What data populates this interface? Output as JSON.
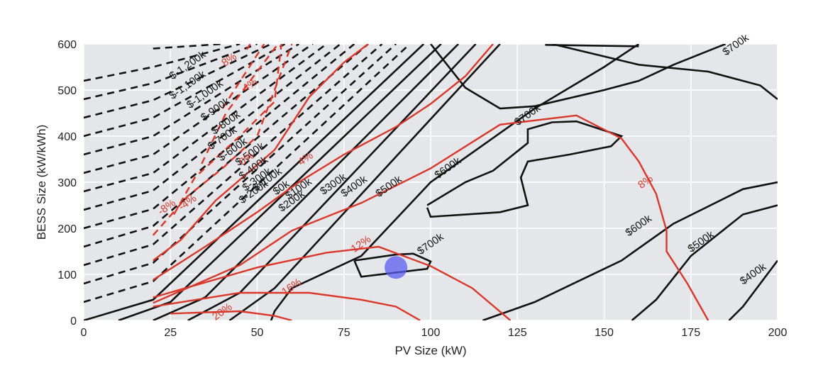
{
  "chart_data": {
    "type": "contour",
    "xlabel": "PV Size (kW)",
    "ylabel": "BESS Size (kW/kWh)",
    "xlim": [
      0,
      200
    ],
    "ylim": [
      0,
      600
    ],
    "xticks": [
      0,
      25,
      50,
      75,
      100,
      125,
      150,
      175,
      200
    ],
    "yticks": [
      0,
      100,
      200,
      300,
      400,
      500,
      600
    ],
    "grid": true,
    "colors": {
      "plot_bg": "#e5e6e9",
      "grid": "#ffffff",
      "npv": "#111111",
      "irr": "#d9372a",
      "marker": "#5a5cf0"
    },
    "npv_lines_negative": [
      {
        "label": "$-1,200k",
        "pts": [
          [
            20,
            590
          ],
          [
            40,
            600
          ]
        ]
      },
      {
        "label": "$-1,100k",
        "pts": [
          [
            0,
            520
          ],
          [
            20,
            550
          ],
          [
            45,
            600
          ]
        ]
      },
      {
        "label": "$-1,000k",
        "pts": [
          [
            0,
            480
          ],
          [
            20,
            515
          ],
          [
            50,
            600
          ]
        ]
      },
      {
        "label": "$-900k",
        "pts": [
          [
            0,
            440
          ],
          [
            20,
            478
          ],
          [
            54,
            600
          ]
        ]
      },
      {
        "label": "$-800k",
        "pts": [
          [
            0,
            400
          ],
          [
            20,
            440
          ],
          [
            58,
            600
          ]
        ]
      },
      {
        "label": "$-700k",
        "pts": [
          [
            0,
            360
          ],
          [
            20,
            400
          ],
          [
            62,
            600
          ]
        ]
      },
      {
        "label": "$-600k",
        "pts": [
          [
            0,
            320
          ],
          [
            20,
            360
          ],
          [
            66,
            600
          ]
        ]
      },
      {
        "label": "$-500k",
        "pts": [
          [
            0,
            280
          ],
          [
            20,
            320
          ],
          [
            70,
            600
          ]
        ]
      },
      {
        "label": "$-400k",
        "pts": [
          [
            0,
            240
          ],
          [
            20,
            282
          ],
          [
            74,
            600
          ]
        ]
      },
      {
        "label": "$-300k",
        "pts": [
          [
            0,
            200
          ],
          [
            20,
            242
          ],
          [
            78,
            600
          ]
        ]
      },
      {
        "label": "$-200k",
        "pts": [
          [
            0,
            160
          ],
          [
            20,
            205
          ],
          [
            82,
            600
          ]
        ]
      },
      {
        "label": "$-100k",
        "pts": [
          [
            0,
            120
          ],
          [
            20,
            165
          ],
          [
            86,
            600
          ]
        ]
      },
      {
        "label": "",
        "pts": [
          [
            0,
            80
          ],
          [
            20,
            125
          ],
          [
            90,
            600
          ]
        ]
      },
      {
        "label": "",
        "pts": [
          [
            0,
            40
          ],
          [
            20,
            85
          ],
          [
            94,
            600
          ]
        ]
      }
    ],
    "npv_lines_positive": [
      {
        "label": "$0k",
        "pts": [
          [
            0,
            0
          ],
          [
            20,
            45
          ],
          [
            98,
            600
          ]
        ]
      },
      {
        "label": "$100k",
        "pts": [
          [
            10,
            0
          ],
          [
            25,
            40
          ],
          [
            103,
            600
          ]
        ]
      },
      {
        "label": "$200k",
        "pts": [
          [
            20,
            0
          ],
          [
            35,
            50
          ],
          [
            108,
            600
          ]
        ]
      },
      {
        "label": "$300k",
        "pts": [
          [
            30,
            0
          ],
          [
            45,
            60
          ],
          [
            113,
            600
          ]
        ]
      },
      {
        "label": "$400k",
        "pts": [
          [
            42,
            0
          ],
          [
            55,
            70
          ],
          [
            120,
            600
          ]
        ]
      },
      {
        "label": "$500k",
        "pts": [
          [
            54,
            0
          ],
          [
            55,
            20
          ],
          [
            60,
            70
          ],
          [
            80,
            140
          ],
          [
            100,
            300
          ],
          [
            130,
            460
          ],
          [
            150,
            550
          ],
          [
            160,
            600
          ]
        ]
      },
      {
        "label": "$600k",
        "pts": [
          [
            100,
            600
          ],
          [
            110,
            505
          ],
          [
            120,
            460
          ],
          [
            130,
            465
          ],
          [
            150,
            500
          ],
          [
            160,
            520
          ],
          [
            170,
            555
          ],
          [
            185,
            600
          ]
        ]
      },
      {
        "label": "$600k",
        "pts": [
          [
            115,
            0
          ],
          [
            130,
            40
          ],
          [
            155,
            130
          ],
          [
            170,
            210
          ],
          [
            190,
            285
          ],
          [
            200,
            300
          ]
        ]
      },
      {
        "label": "",
        "pts": [
          [
            135,
            600
          ],
          [
            160,
            555
          ],
          [
            180,
            540
          ],
          [
            195,
            510
          ],
          [
            200,
            480
          ]
        ]
      },
      {
        "label": "$700k",
        "pts": [
          [
            133,
            598
          ],
          [
            160,
            595
          ]
        ]
      },
      {
        "label": "$500k",
        "pts": [
          [
            158,
            0
          ],
          [
            165,
            45
          ],
          [
            175,
            140
          ],
          [
            190,
            230
          ],
          [
            200,
            250
          ]
        ]
      },
      {
        "label": "$400k",
        "pts": [
          [
            186,
            0
          ],
          [
            190,
            30
          ],
          [
            200,
            130
          ]
        ]
      }
    ],
    "npv_closed_regions": [
      {
        "label": "$700k",
        "pts": [
          [
            99,
            245
          ],
          [
            100,
            225
          ],
          [
            120,
            235
          ],
          [
            128,
            250
          ],
          [
            126,
            310
          ],
          [
            128,
            345
          ],
          [
            140,
            360
          ],
          [
            152,
            378
          ],
          [
            155,
            400
          ],
          [
            142,
            432
          ],
          [
            135,
            430
          ],
          [
            128,
            415
          ],
          [
            128,
            385
          ],
          [
            118,
            325
          ],
          [
            110,
            300
          ],
          [
            99,
            250
          ]
        ]
      },
      {
        "label": "$700k",
        "pts": [
          [
            78,
            130
          ],
          [
            90,
            143
          ],
          [
            95,
            145
          ],
          [
            100,
            128
          ],
          [
            99,
            112
          ],
          [
            80,
            95
          ],
          [
            78,
            130
          ]
        ]
      }
    ],
    "irr_lines": [
      {
        "label": "8%",
        "pts": [
          [
            47,
            588
          ],
          [
            48,
            600
          ]
        ],
        "dashed": true
      },
      {
        "label": "4%",
        "pts": [
          [
            40,
            460
          ],
          [
            46,
            530
          ],
          [
            52,
            600
          ]
        ],
        "dashed": true
      },
      {
        "label": "0%",
        "pts": [
          [
            34,
            340
          ],
          [
            41,
            450
          ],
          [
            56,
            600
          ]
        ],
        "dashed": true
      },
      {
        "label": "-4%",
        "pts": [
          [
            26,
            230
          ],
          [
            32,
            310
          ],
          [
            45,
            400
          ],
          [
            55,
            475
          ],
          [
            57,
            600
          ]
        ],
        "dashed": true
      },
      {
        "label": "-8%",
        "pts": [
          [
            20,
            185
          ],
          [
            30,
            270
          ],
          [
            40,
            330
          ],
          [
            50,
            400
          ],
          [
            60,
            600
          ]
        ],
        "dashed": true
      },
      {
        "label": "-4%",
        "pts": [
          [
            20,
            130
          ],
          [
            28,
            175
          ],
          [
            38,
            260
          ],
          [
            55,
            370
          ],
          [
            65,
            485
          ],
          [
            75,
            560
          ],
          [
            82,
            600
          ]
        ],
        "dashed": false
      },
      {
        "label": "4%",
        "pts": [
          [
            20,
            88
          ],
          [
            35,
            160
          ],
          [
            50,
            235
          ],
          [
            62,
            300
          ],
          [
            75,
            360
          ],
          [
            90,
            420
          ],
          [
            100,
            470
          ],
          [
            110,
            530
          ],
          [
            118,
            600
          ]
        ],
        "dashed": false
      },
      {
        "label": "8%",
        "pts": [
          [
            20,
            38
          ],
          [
            45,
            120
          ],
          [
            60,
            195
          ],
          [
            80,
            255
          ],
          [
            100,
            330
          ],
          [
            120,
            425
          ],
          [
            142,
            445
          ],
          [
            155,
            395
          ],
          [
            160,
            345
          ],
          [
            165,
            275
          ],
          [
            168,
            195
          ],
          [
            168,
            150
          ],
          [
            174,
            80
          ],
          [
            180,
            0
          ]
        ],
        "dashed": false
      },
      {
        "label": "12%",
        "pts": [
          [
            20,
            50
          ],
          [
            50,
            115
          ],
          [
            70,
            147
          ],
          [
            85,
            160
          ],
          [
            100,
            118
          ],
          [
            112,
            70
          ],
          [
            123,
            0
          ]
        ],
        "dashed": false
      },
      {
        "label": "16%",
        "pts": [
          [
            20,
            30
          ],
          [
            45,
            60
          ],
          [
            65,
            60
          ],
          [
            80,
            45
          ],
          [
            90,
            30
          ],
          [
            97,
            0
          ]
        ],
        "dashed": false
      },
      {
        "label": "20%",
        "pts": [
          [
            25,
            15
          ],
          [
            45,
            20
          ],
          [
            55,
            10
          ],
          [
            60,
            0
          ]
        ],
        "dashed": false
      }
    ],
    "marker": {
      "x": 90,
      "y": 115
    },
    "contour_labels": [
      {
        "text": "$-1,200k",
        "x": 30,
        "y": 553
      },
      {
        "text": "$-1,100k",
        "x": 30,
        "y": 510
      },
      {
        "text": "$-1,000k",
        "x": 35,
        "y": 490
      },
      {
        "text": "$-900k",
        "x": 38,
        "y": 457
      },
      {
        "text": "$-800k",
        "x": 41,
        "y": 428
      },
      {
        "text": "$-700k",
        "x": 40,
        "y": 395
      },
      {
        "text": "$-600k",
        "x": 43,
        "y": 370
      },
      {
        "text": "$-500k",
        "x": 48,
        "y": 360
      },
      {
        "text": "$-400k",
        "x": 49,
        "y": 330
      },
      {
        "text": "$-300k",
        "x": 50,
        "y": 305
      },
      {
        "text": "$-200k",
        "x": 49,
        "y": 278
      },
      {
        "text": "$-100k",
        "x": 53,
        "y": 305
      },
      {
        "text": "$0k",
        "x": 57,
        "y": 287
      },
      {
        "text": "$100k",
        "x": 62,
        "y": 285
      },
      {
        "text": "$200k",
        "x": 60,
        "y": 258
      },
      {
        "text": "$300k",
        "x": 72,
        "y": 295
      },
      {
        "text": "$400k",
        "x": 78,
        "y": 290
      },
      {
        "text": "$500k",
        "x": 88,
        "y": 290
      },
      {
        "text": "$600k",
        "x": 105,
        "y": 330
      },
      {
        "text": "$700k",
        "x": 128,
        "y": 445
      },
      {
        "text": "$700k",
        "x": 100,
        "y": 165
      },
      {
        "text": "$600k",
        "x": 160,
        "y": 205
      },
      {
        "text": "$500k",
        "x": 178,
        "y": 170
      },
      {
        "text": "$400k",
        "x": 193,
        "y": 100
      },
      {
        "text": "$700k",
        "x": 188,
        "y": 597
      }
    ],
    "irr_labels": [
      {
        "text": "8%",
        "x": 42,
        "y": 565
      },
      {
        "text": "4%",
        "x": 48,
        "y": 510
      },
      {
        "text": "0%",
        "x": 47,
        "y": 350
      },
      {
        "text": "4%",
        "x": 64,
        "y": 350
      },
      {
        "text": "-4%",
        "x": 30,
        "y": 255
      },
      {
        "text": "-8%",
        "x": 24,
        "y": 245
      },
      {
        "text": "8%",
        "x": 162,
        "y": 300
      },
      {
        "text": "12%",
        "x": 80,
        "y": 165
      },
      {
        "text": "16%",
        "x": 60,
        "y": 72
      },
      {
        "text": "20%",
        "x": 40,
        "y": 18
      }
    ]
  }
}
